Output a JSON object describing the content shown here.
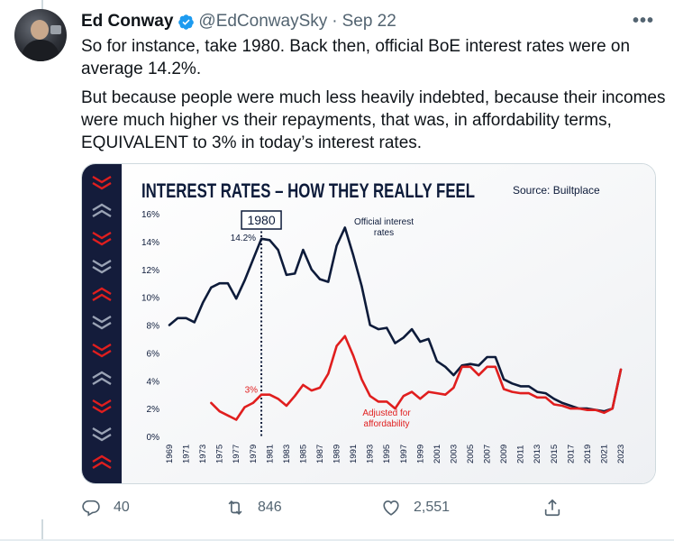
{
  "tweet": {
    "author_name": "Ed Conway",
    "handle": "@EdConwaySky",
    "separator": "·",
    "date": "Sep 22",
    "more_icon": "more-icon",
    "paragraphs": [
      "So for instance, take 1980. Back then, official BoE interest rates were on average 14.2%.",
      "But because people were much less heavily indebted, because their incomes were much higher vs their repayments, that was, in affordability terms, EQUIVALENT to 3% in today’s interest rates."
    ]
  },
  "actions": {
    "reply": {
      "icon": "reply-icon",
      "count": "40"
    },
    "retweet": {
      "icon": "retweet-icon",
      "count": "846"
    },
    "like": {
      "icon": "heart-icon",
      "count": "2,551"
    },
    "share": {
      "icon": "share-icon"
    }
  },
  "colors": {
    "accent_blue": "#1d9bf0",
    "official_line": "#0d1b3a",
    "adjusted_line": "#e01e1e",
    "sidebar": "#141c3b",
    "text_secondary": "#536471"
  },
  "chart_data": {
    "type": "line",
    "title": "INTEREST RATES – HOW THEY REALLY FEEL",
    "source": "Source: Builtplace",
    "ylim": [
      0,
      16
    ],
    "yticks": [
      "0%",
      "2%",
      "4%",
      "6%",
      "8%",
      "10%",
      "12%",
      "14%",
      "16%"
    ],
    "xticks": [
      "1969",
      "1971",
      "1973",
      "1975",
      "1977",
      "1979",
      "1981",
      "1983",
      "1985",
      "1987",
      "1989",
      "1991",
      "1993",
      "1995",
      "1997",
      "1999",
      "2001",
      "2003",
      "2005",
      "2007",
      "2009",
      "2011",
      "2013",
      "2015",
      "2017",
      "2019",
      "2021",
      "2023"
    ],
    "highlight_year": "1980",
    "highlight_official_label": "14.2%",
    "highlight_adjusted_label": "3%",
    "series": [
      {
        "name": "Official interest rates",
        "color": "#0d1b3a",
        "points": [
          [
            1969,
            8.0
          ],
          [
            1970,
            8.5
          ],
          [
            1971,
            8.5
          ],
          [
            1972,
            8.2
          ],
          [
            1973,
            9.6
          ],
          [
            1974,
            10.7
          ],
          [
            1975,
            11.0
          ],
          [
            1976,
            11.0
          ],
          [
            1977,
            9.9
          ],
          [
            1978,
            11.2
          ],
          [
            1979,
            12.7
          ],
          [
            1980,
            14.2
          ],
          [
            1981,
            14.1
          ],
          [
            1982,
            13.4
          ],
          [
            1983,
            11.6
          ],
          [
            1984,
            11.7
          ],
          [
            1985,
            13.4
          ],
          [
            1986,
            12.0
          ],
          [
            1987,
            11.3
          ],
          [
            1988,
            11.1
          ],
          [
            1989,
            13.7
          ],
          [
            1990,
            15.0
          ],
          [
            1991,
            13.0
          ],
          [
            1992,
            10.8
          ],
          [
            1993,
            8.0
          ],
          [
            1994,
            7.7
          ],
          [
            1995,
            7.8
          ],
          [
            1996,
            6.7
          ],
          [
            1997,
            7.1
          ],
          [
            1998,
            7.7
          ],
          [
            1999,
            6.8
          ],
          [
            2000,
            7.0
          ],
          [
            2001,
            5.4
          ],
          [
            2002,
            5.0
          ],
          [
            2003,
            4.4
          ],
          [
            2004,
            5.1
          ],
          [
            2005,
            5.2
          ],
          [
            2006,
            5.1
          ],
          [
            2007,
            5.7
          ],
          [
            2008,
            5.7
          ],
          [
            2009,
            4.1
          ],
          [
            2010,
            3.8
          ],
          [
            2011,
            3.6
          ],
          [
            2012,
            3.6
          ],
          [
            2013,
            3.2
          ],
          [
            2014,
            3.1
          ],
          [
            2015,
            2.7
          ],
          [
            2016,
            2.4
          ],
          [
            2017,
            2.2
          ],
          [
            2018,
            2.0
          ],
          [
            2019,
            2.0
          ],
          [
            2020,
            1.9
          ],
          [
            2021,
            1.8
          ],
          [
            2022,
            2.0
          ],
          [
            2023,
            4.8
          ]
        ]
      },
      {
        "name": "Adjusted for affordability",
        "color": "#e01e1e",
        "points": [
          [
            1974,
            2.4
          ],
          [
            1975,
            1.8
          ],
          [
            1976,
            1.5
          ],
          [
            1977,
            1.2
          ],
          [
            1978,
            2.1
          ],
          [
            1979,
            2.4
          ],
          [
            1980,
            3.0
          ],
          [
            1981,
            3.0
          ],
          [
            1982,
            2.7
          ],
          [
            1983,
            2.2
          ],
          [
            1984,
            2.9
          ],
          [
            1985,
            3.7
          ],
          [
            1986,
            3.3
          ],
          [
            1987,
            3.5
          ],
          [
            1988,
            4.5
          ],
          [
            1989,
            6.5
          ],
          [
            1990,
            7.2
          ],
          [
            1991,
            5.8
          ],
          [
            1992,
            4.1
          ],
          [
            1993,
            2.9
          ],
          [
            1994,
            2.5
          ],
          [
            1995,
            2.5
          ],
          [
            1996,
            2.0
          ],
          [
            1997,
            2.9
          ],
          [
            1998,
            3.2
          ],
          [
            1999,
            2.7
          ],
          [
            2000,
            3.2
          ],
          [
            2001,
            3.1
          ],
          [
            2002,
            3.0
          ],
          [
            2003,
            3.5
          ],
          [
            2004,
            5.0
          ],
          [
            2005,
            5.0
          ],
          [
            2006,
            4.4
          ],
          [
            2007,
            5.0
          ],
          [
            2008,
            5.0
          ],
          [
            2009,
            3.4
          ],
          [
            2010,
            3.2
          ],
          [
            2011,
            3.1
          ],
          [
            2012,
            3.1
          ],
          [
            2013,
            2.8
          ],
          [
            2014,
            2.8
          ],
          [
            2015,
            2.3
          ],
          [
            2016,
            2.2
          ],
          [
            2017,
            2.0
          ],
          [
            2018,
            2.0
          ],
          [
            2019,
            1.9
          ],
          [
            2020,
            1.9
          ],
          [
            2021,
            1.7
          ],
          [
            2022,
            2.0
          ],
          [
            2023,
            4.8
          ]
        ]
      }
    ]
  }
}
